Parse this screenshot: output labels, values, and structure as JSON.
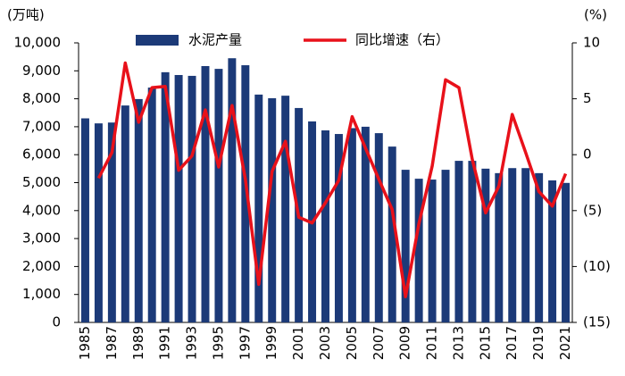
{
  "chart_data": {
    "type": "bar_line",
    "ylabel": "(万吨)",
    "y2label": "(%)",
    "categories": [
      "1985",
      null,
      "1987",
      null,
      "1989",
      null,
      "1991",
      null,
      "1993",
      null,
      "1995",
      null,
      "1997",
      null,
      "1999",
      null,
      "2001",
      null,
      "2003",
      null,
      "2005",
      null,
      "2007",
      null,
      "2009",
      null,
      "2011",
      null,
      "2013",
      null,
      "2015",
      null,
      "2017",
      null,
      "2019",
      null,
      "2021"
    ],
    "series": [
      {
        "name": "水泥产量",
        "type": "bar",
        "color": "#1c3a78",
        "values": [
          7300,
          7120,
          7150,
          7760,
          7990,
          8400,
          8950,
          8850,
          8820,
          9170,
          9070,
          9450,
          9200,
          8150,
          8020,
          8110,
          7670,
          7190,
          6870,
          6740,
          6950,
          7000,
          6770,
          6290,
          5460,
          5140,
          5110,
          5460,
          5780,
          5780,
          5500,
          5340,
          5520,
          5520,
          5340,
          5080,
          4990
        ]
      },
      {
        "name": "同比增速（右）",
        "type": "line",
        "axis": "y2",
        "color": "#e8111a",
        "values": [
          null,
          -2.1,
          0.2,
          8.2,
          2.9,
          6.0,
          6.1,
          -1.4,
          -0.1,
          4.0,
          -1.1,
          4.4,
          -2.2,
          -11.6,
          -1.5,
          1.2,
          -5.6,
          -6.1,
          -4.3,
          -2.3,
          3.4,
          0.6,
          -2.2,
          -4.9,
          -12.7,
          -6.2,
          -1.0,
          6.7,
          6.0,
          -0.4,
          -5.2,
          -2.8,
          3.6,
          0.2,
          -3.3,
          -4.6,
          -1.7
        ]
      }
    ],
    "ylim": [
      0,
      10000
    ],
    "yticks": [
      0,
      {
        "value": 1000,
        "label": "1,000"
      },
      {
        "value": 2000,
        "label": "2,000"
      },
      {
        "value": 3000,
        "label": "3,000"
      },
      {
        "value": 4000,
        "label": "4,000"
      },
      {
        "value": 5000,
        "label": "5,000"
      },
      {
        "value": 6000,
        "label": "6,000"
      },
      {
        "value": 7000,
        "label": "7,000"
      },
      {
        "value": 8000,
        "label": "8,000"
      },
      {
        "value": 9000,
        "label": "9,000"
      },
      {
        "value": 10000,
        "label": "10,000"
      }
    ],
    "y2lim": [
      -15,
      10
    ],
    "y2ticks": [
      {
        "value": -15,
        "label": "(15)"
      },
      {
        "value": -10,
        "label": "(10)"
      },
      {
        "value": -5,
        "label": "(5)"
      },
      0,
      5,
      10
    ],
    "grid": false
  }
}
